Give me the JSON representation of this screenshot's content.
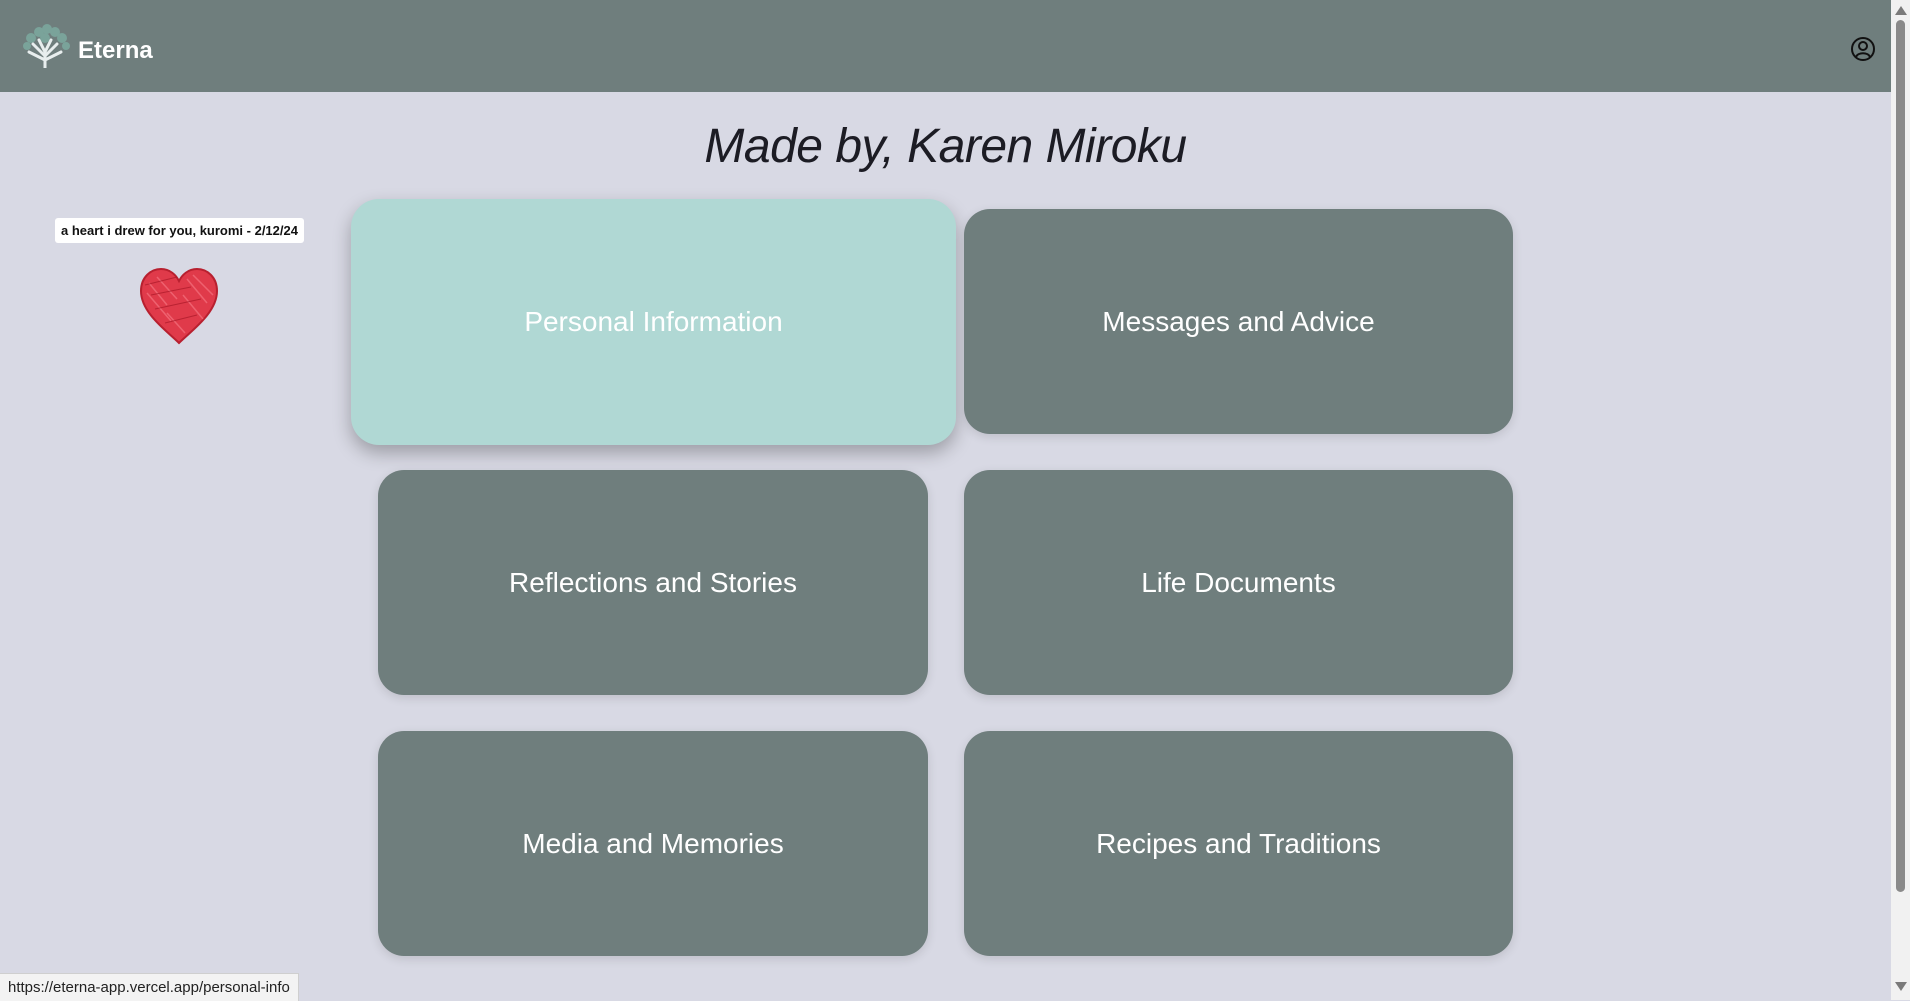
{
  "app": {
    "brand": "Eterna",
    "logo_icon": "tree-icon",
    "account_icon": "user-circle-icon"
  },
  "page": {
    "title": "Made by, Karen Miroku"
  },
  "note": {
    "label": "a heart i drew for you, kuromi - 2/12/24",
    "image": "heart-drawing-icon"
  },
  "cards": [
    {
      "label": "Personal Information",
      "active": true
    },
    {
      "label": "Messages and Advice",
      "active": false
    },
    {
      "label": "Reflections and Stories",
      "active": false
    },
    {
      "label": "Life Documents",
      "active": false
    },
    {
      "label": "Media and Memories",
      "active": false
    },
    {
      "label": "Recipes and Traditions",
      "active": false
    }
  ],
  "status_bar": {
    "url": "https://eterna-app.vercel.app/personal-info"
  },
  "colors": {
    "header": "#6f7e7d",
    "background": "#d8d9e4",
    "card": "#6f7e7d",
    "card_active": "#b0d8d4",
    "heart": "#e03a4a"
  }
}
